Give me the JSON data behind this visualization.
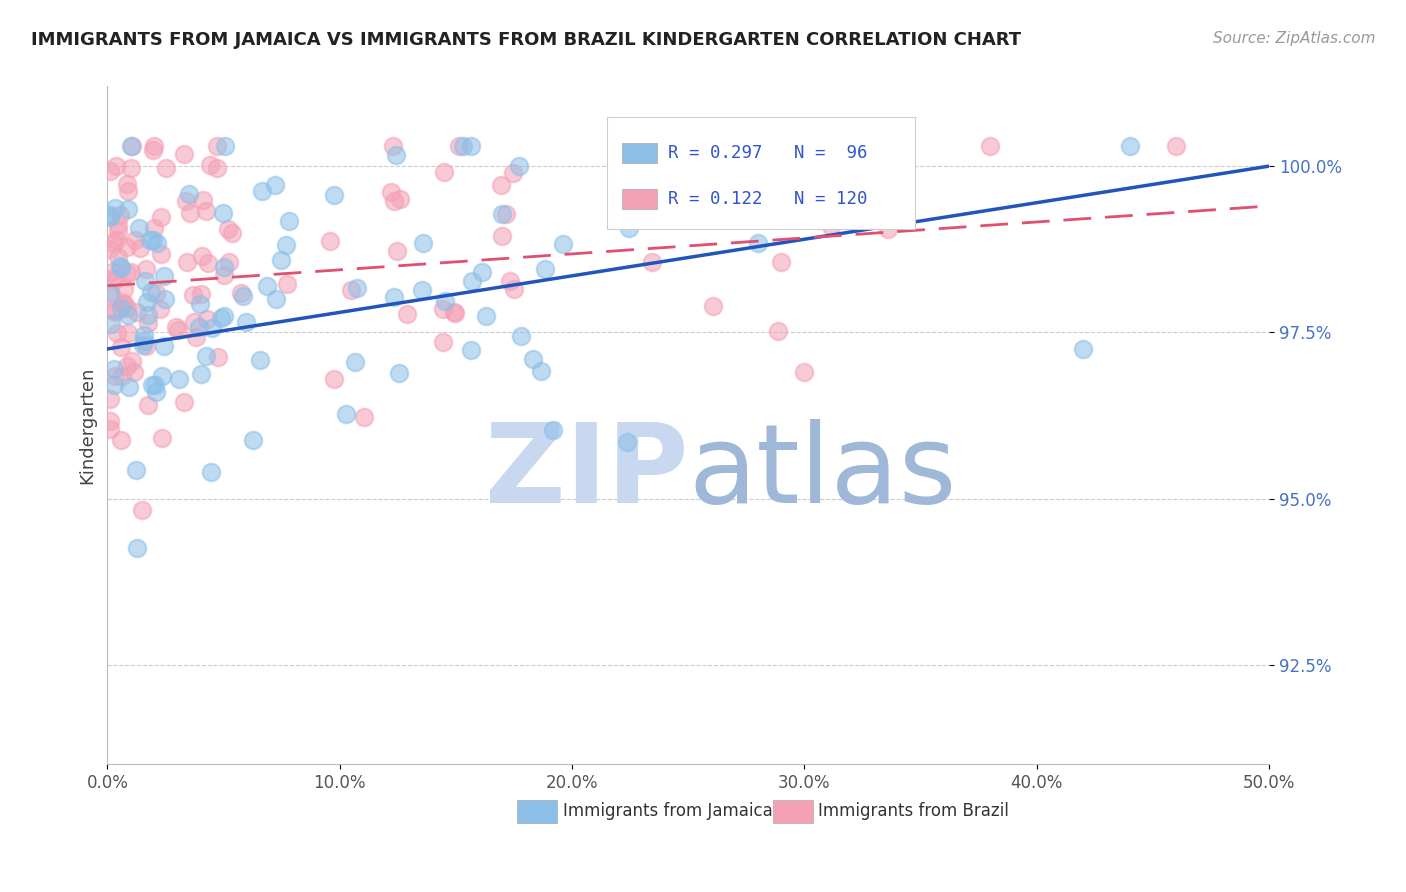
{
  "title": "IMMIGRANTS FROM JAMAICA VS IMMIGRANTS FROM BRAZIL KINDERGARTEN CORRELATION CHART",
  "source_text": "Source: ZipAtlas.com",
  "ylabel": "Kindergarten",
  "xlim": [
    0.0,
    0.5
  ],
  "ylim": [
    0.91,
    1.012
  ],
  "xtick_labels": [
    "0.0%",
    "10.0%",
    "20.0%",
    "30.0%",
    "40.0%",
    "50.0%"
  ],
  "xtick_values": [
    0.0,
    0.1,
    0.2,
    0.3,
    0.4,
    0.5
  ],
  "ytick_labels": [
    "92.5%",
    "95.0%",
    "97.5%",
    "100.0%"
  ],
  "ytick_values": [
    0.925,
    0.95,
    0.975,
    1.0
  ],
  "jamaica_color": "#8BBFE8",
  "brazil_color": "#F4A0B5",
  "jamaica_line_color": "#2255BB",
  "brazil_line_color": "#E05070",
  "jamaica_R": 0.297,
  "jamaica_N": 96,
  "brazil_R": 0.122,
  "brazil_N": 120,
  "legend_color": "#3355CC",
  "watermark_ZIP_color": "#C8D8F0",
  "watermark_atlas_color": "#A0B8D8",
  "background_color": "#FFFFFF",
  "grid_color": "#CCCCCC",
  "title_color": "#222222",
  "axis_label_color": "#444444",
  "ytick_color": "#4472C4",
  "xtick_color": "#555555"
}
